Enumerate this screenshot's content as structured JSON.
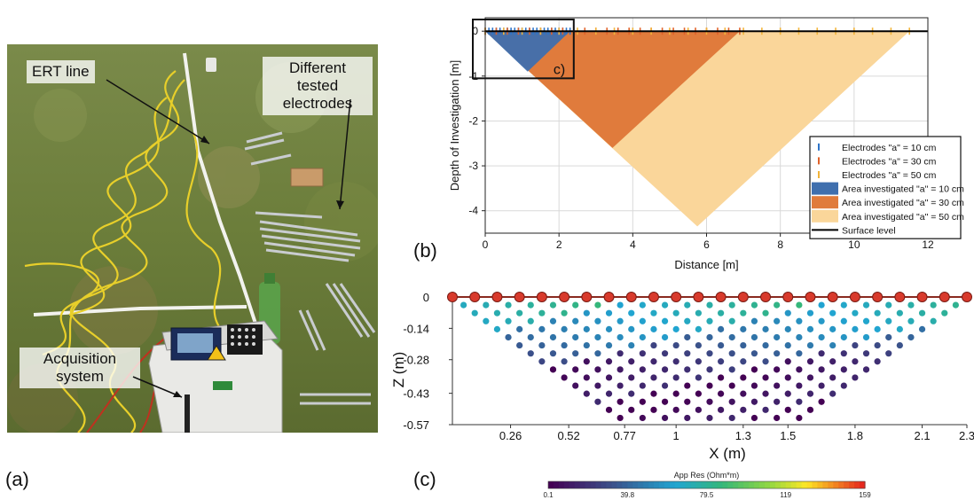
{
  "panel_labels": {
    "a": "(a)",
    "b": "(b)",
    "c": "(c)"
  },
  "photo": {
    "callouts": {
      "ert_line": "ERT line",
      "tested_electrodes": "Different tested electrodes",
      "acquisition": "Acquisition system"
    }
  },
  "colors": {
    "area_10": "#3f6fae",
    "area_30": "#e07b3c",
    "area_50": "#fad69a",
    "elec_10": "#2e74c8",
    "elec_30": "#e0622a",
    "elec_50": "#f2b43a",
    "surface": "#000000",
    "electrode_dot": "#d83a2c"
  },
  "chart_data": [
    {
      "type": "area",
      "panel": "(b)",
      "xlabel": "Distance [m]",
      "ylabel": "Depth of Investigation [m]",
      "xlim": [
        0,
        12
      ],
      "ylim": [
        -4.5,
        0.3
      ],
      "xticks": [
        0,
        2,
        4,
        6,
        8,
        10,
        12
      ],
      "yticks": [
        0,
        -1,
        -2,
        -3,
        -4
      ],
      "grid": true,
      "legend_position": "bottom-right",
      "inset_label": "c)",
      "series": [
        {
          "name": "Electrodes \"a\" = 10 cm",
          "kind": "electrodes",
          "spacing": 0.1,
          "x_start": 0,
          "x_end": 2.3
        },
        {
          "name": "Electrodes \"a\" = 30 cm",
          "kind": "electrodes",
          "spacing": 0.3,
          "x_start": 0,
          "x_end": 6.9
        },
        {
          "name": "Electrodes \"a\" = 50 cm",
          "kind": "electrodes",
          "spacing": 0.5,
          "x_start": 0,
          "x_end": 11.5
        },
        {
          "name": "Area investigated \"a\" = 10 cm",
          "kind": "area",
          "points": [
            [
              0,
              0
            ],
            [
              2.3,
              0
            ],
            [
              1.15,
              -0.9
            ]
          ]
        },
        {
          "name": "Area investigated \"a\" = 30 cm",
          "kind": "area",
          "points": [
            [
              0,
              0
            ],
            [
              6.9,
              0
            ],
            [
              3.45,
              -2.6
            ]
          ]
        },
        {
          "name": "Area investigated \"a\" = 50 cm",
          "kind": "area",
          "points": [
            [
              0,
              0
            ],
            [
              11.5,
              0
            ],
            [
              5.75,
              -4.35
            ]
          ]
        },
        {
          "name": "Surface level",
          "kind": "line",
          "points": [
            [
              0,
              0
            ],
            [
              12,
              0
            ]
          ]
        }
      ]
    },
    {
      "type": "scatter",
      "panel": "(c)",
      "xlabel": "X (m)",
      "ylabel": "Z (m)",
      "xlim": [
        0,
        2.3
      ],
      "ylim": [
        -0.57,
        0
      ],
      "xtick_labels": [
        "0.26",
        "0.52",
        "0.77",
        "1",
        "1.3",
        "1.5",
        "1.8",
        "2.1",
        "2.3"
      ],
      "xtick_values": [
        0.26,
        0.52,
        0.77,
        1.0,
        1.3,
        1.5,
        1.8,
        2.1,
        2.3
      ],
      "ytick_labels": [
        "0",
        "-0.14",
        "-0.28",
        "-0.43",
        "-0.57"
      ],
      "ytick_values": [
        0,
        -0.14,
        -0.28,
        -0.43,
        -0.57
      ],
      "electrode_count": 24,
      "colorbar": {
        "title": "App Res (Ohm*m)",
        "ticks": [
          "0.1",
          "39.8",
          "79.5",
          "119",
          "159"
        ],
        "min": 0.1,
        "max": 159
      },
      "pseudosection": {
        "levels": 15,
        "level_depth_step": 0.036,
        "level_values": [
          75,
          70,
          62,
          55,
          48,
          38,
          28,
          18,
          12,
          8,
          6,
          5,
          4,
          3,
          3
        ]
      }
    }
  ]
}
